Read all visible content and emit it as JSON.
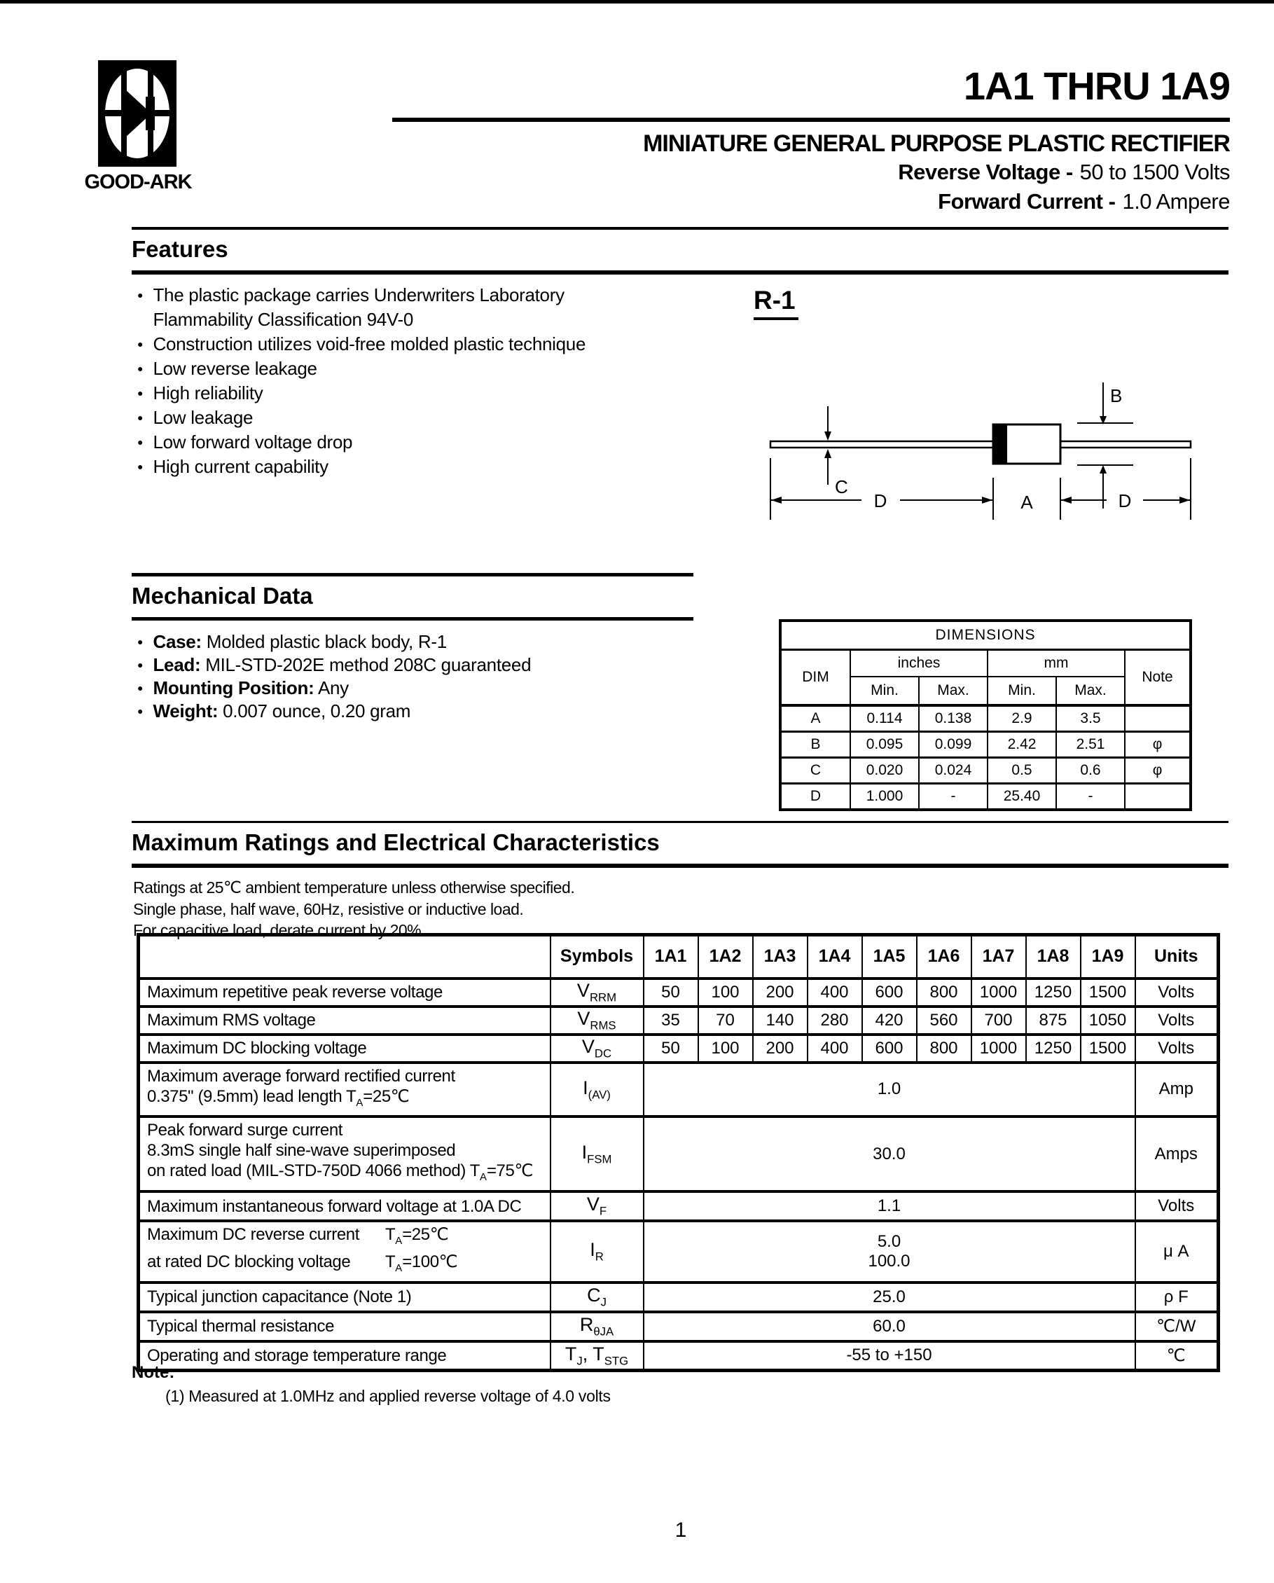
{
  "page": {
    "number": "1"
  },
  "brand": {
    "name": "GOOD-ARK"
  },
  "header": {
    "part_range": "1A1 THRU 1A9",
    "subtitle": "MINIATURE GENERAL PURPOSE PLASTIC RECTIFIER",
    "specs": [
      {
        "label": "Reverse Voltage -",
        "value": "50 to 1500 Volts"
      },
      {
        "label": "Forward Current -",
        "value": "1.0 Ampere"
      }
    ]
  },
  "features": {
    "title": "Features",
    "items": [
      "The plastic package carries Underwriters Laboratory\nFlammability Classification 94V-0",
      "Construction utilizes void-free molded plastic technique",
      "Low reverse leakage",
      "High reliability",
      "Low leakage",
      "Low forward voltage drop",
      "High current capability"
    ]
  },
  "package": {
    "name": "R-1",
    "dim_labels": [
      "A",
      "B",
      "C",
      "D"
    ]
  },
  "mechanical": {
    "title": "Mechanical Data",
    "items": [
      {
        "label": "Case:",
        "text": "Molded plastic black body, R-1"
      },
      {
        "label": "Lead:",
        "text": "MIL-STD-202E method 208C guaranteed"
      },
      {
        "label": "Mounting Position:",
        "text": "Any"
      },
      {
        "label": "Weight:",
        "text": "0.007 ounce, 0.20 gram"
      }
    ]
  },
  "dimensions_table": {
    "title": "DIMENSIONS",
    "dim_header": "DIM",
    "note_header": "Note",
    "col_groups": [
      "inches",
      "mm"
    ],
    "sub_headers": [
      "Min.",
      "Max.",
      "Min.",
      "Max."
    ],
    "rows": [
      {
        "dim": "A",
        "in_min": "0.114",
        "in_max": "0.138",
        "mm_min": "2.9",
        "mm_max": "3.5",
        "note": ""
      },
      {
        "dim": "B",
        "in_min": "0.095",
        "in_max": "0.099",
        "mm_min": "2.42",
        "mm_max": "2.51",
        "note": "φ"
      },
      {
        "dim": "C",
        "in_min": "0.020",
        "in_max": "0.024",
        "mm_min": "0.5",
        "mm_max": "0.6",
        "note": "φ"
      },
      {
        "dim": "D",
        "in_min": "1.000",
        "in_max": "-",
        "mm_min": "25.40",
        "mm_max": "-",
        "note": ""
      }
    ]
  },
  "ratings": {
    "title": "Maximum Ratings and Electrical Characteristics",
    "conditions": [
      "Ratings at 25℃ ambient temperature unless otherwise specified.",
      "Single phase, half wave, 60Hz, resistive or inductive load.",
      "For capacitive load, derate current by 20%."
    ],
    "table": {
      "symbols_header": "Symbols",
      "units_header": "Units",
      "device_columns": [
        "1A1",
        "1A2",
        "1A3",
        "1A4",
        "1A5",
        "1A6",
        "1A7",
        "1A8",
        "1A9"
      ],
      "rows": [
        {
          "param": [
            "Maximum repetitive peak reverse voltage"
          ],
          "symbol": "V_RRM",
          "values": [
            "50",
            "100",
            "200",
            "400",
            "600",
            "800",
            "1000",
            "1250",
            "1500"
          ],
          "unit": "Volts"
        },
        {
          "param": [
            "Maximum RMS voltage"
          ],
          "symbol": "V_RMS",
          "values": [
            "35",
            "70",
            "140",
            "280",
            "420",
            "560",
            "700",
            "875",
            "1050"
          ],
          "unit": "Volts"
        },
        {
          "param": [
            "Maximum DC blocking voltage"
          ],
          "symbol": "V_DC",
          "values": [
            "50",
            "100",
            "200",
            "400",
            "600",
            "800",
            "1000",
            "1250",
            "1500"
          ],
          "unit": "Volts"
        },
        {
          "param": [
            "Maximum average forward rectified current",
            "0.375\" (9.5mm) lead length T~A~=25℃"
          ],
          "symbol": "I_(AV)",
          "span": [
            "1.0"
          ],
          "unit": "Amp"
        },
        {
          "param": [
            "Peak forward surge current",
            "8.3mS single half sine-wave superimposed",
            "on rated load (MIL-STD-750D 4066 method) T~A~=75℃"
          ],
          "symbol": "I_FSM",
          "span": [
            "30.0"
          ],
          "unit": "Amps"
        },
        {
          "param": [
            "Maximum instantaneous forward voltage at 1.0A DC"
          ],
          "symbol": "V_F",
          "span": [
            "1.1"
          ],
          "unit": "Volts"
        },
        {
          "param": [
            "Maximum DC reverse current|T~A~=25℃",
            "at rated DC blocking voltage|T~A~=100℃"
          ],
          "symbol": "I_R",
          "span": [
            "5.0",
            "100.0"
          ],
          "unit": "μ A"
        },
        {
          "param": [
            "Typical junction capacitance (Note 1)"
          ],
          "symbol": "C_J",
          "span": [
            "25.0"
          ],
          "unit": "ρ F"
        },
        {
          "param": [
            "Typical thermal resistance"
          ],
          "symbol": "R_θJA",
          "span": [
            "60.0"
          ],
          "unit": "℃/W"
        },
        {
          "param": [
            "Operating and storage temperature range"
          ],
          "symbol": "T_J, T_STG",
          "span": [
            "-55 to +150"
          ],
          "unit": "℃"
        }
      ]
    },
    "note_label": "Note:",
    "notes": [
      "(1) Measured at 1.0MHz and applied reverse voltage of 4.0 volts"
    ]
  }
}
